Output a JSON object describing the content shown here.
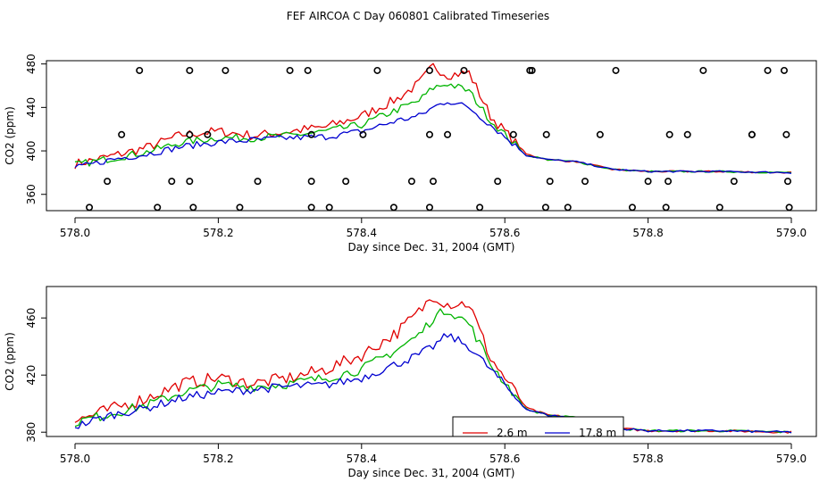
{
  "figure_title": "FEF AIRCOA C  Day 060801  Calibrated Timeseries",
  "colors": {
    "red": "#e00000",
    "green": "#00b400",
    "blue": "#0000d0",
    "ref": "#000000"
  },
  "chart_data": [
    {
      "type": "line",
      "title": "FEF AIRCOA C  Day 060801  Calibrated Timeseries",
      "xlabel": "Day since Dec. 31, 2004 (GMT)",
      "ylabel": "CO2 (ppm)",
      "xlim": [
        578.0,
        579.0
      ],
      "ylim": [
        345,
        483
      ],
      "xticks": [
        578.0,
        578.2,
        578.4,
        578.6,
        578.8,
        579.0
      ],
      "xtick_labels": [
        "578.0",
        "578.2",
        "578.4",
        "578.6",
        "578.8",
        "579.0"
      ],
      "yticks": [
        360,
        400,
        440,
        480
      ],
      "ytick_labels": [
        "360",
        "400",
        "440",
        "480"
      ],
      "series": [
        {
          "name": "red",
          "color_key": "red",
          "x": [
            578.0,
            578.05,
            578.1,
            578.15,
            578.2,
            578.25,
            578.3,
            578.35,
            578.4,
            578.45,
            578.48,
            578.5,
            578.52,
            578.55,
            578.58,
            578.6,
            578.63,
            578.66,
            578.7,
            578.75,
            578.8,
            578.9,
            579.0
          ],
          "y": [
            388,
            395,
            403,
            415,
            418,
            414,
            418,
            422,
            432,
            448,
            462,
            478,
            470,
            472,
            432,
            418,
            397,
            392,
            390,
            383,
            381,
            381,
            380
          ]
        },
        {
          "name": "green",
          "color_key": "green",
          "x": [
            578.0,
            578.05,
            578.1,
            578.15,
            578.2,
            578.25,
            578.3,
            578.35,
            578.4,
            578.45,
            578.48,
            578.5,
            578.52,
            578.55,
            578.58,
            578.6,
            578.63,
            578.66,
            578.7,
            578.75,
            578.8,
            578.9,
            579.0
          ],
          "y": [
            387,
            393,
            399,
            408,
            412,
            412,
            414,
            418,
            424,
            438,
            446,
            458,
            462,
            455,
            428,
            415,
            396,
            392,
            390,
            383,
            381,
            381,
            380
          ]
        },
        {
          "name": "blue",
          "color_key": "blue",
          "x": [
            578.0,
            578.05,
            578.1,
            578.15,
            578.2,
            578.25,
            578.3,
            578.35,
            578.4,
            578.45,
            578.48,
            578.5,
            578.52,
            578.55,
            578.58,
            578.6,
            578.63,
            578.66,
            578.7,
            578.75,
            578.8,
            578.9,
            579.0
          ],
          "y": [
            384,
            392,
            397,
            404,
            408,
            410,
            412,
            413,
            418,
            428,
            432,
            440,
            446,
            440,
            424,
            413,
            396,
            392,
            390,
            383,
            381,
            381,
            380
          ]
        }
      ],
      "reference_points": {
        "color_key": "ref",
        "x": [
          578.02,
          578.045,
          578.065,
          578.09,
          578.115,
          578.135,
          578.16,
          578.16,
          578.165,
          578.16,
          578.185,
          578.21,
          578.23,
          578.255,
          578.3,
          578.325,
          578.33,
          578.33,
          578.33,
          578.355,
          578.378,
          578.402,
          578.422,
          578.445,
          578.47,
          578.495,
          578.495,
          578.495,
          578.5,
          578.52,
          578.543,
          578.565,
          578.59,
          578.612,
          578.635,
          578.638,
          578.657,
          578.658,
          578.663,
          578.688,
          578.712,
          578.733,
          578.755,
          578.778,
          578.8,
          578.825,
          578.828,
          578.83,
          578.855,
          578.877,
          578.9,
          578.92,
          578.945,
          578.945,
          578.967,
          578.99,
          578.993,
          578.995,
          578.997
        ],
        "y": [
          348,
          372,
          415,
          474,
          348,
          372,
          474,
          372,
          348,
          415,
          415,
          474,
          348,
          372,
          474,
          474,
          348,
          372,
          415,
          348,
          372,
          415,
          474,
          348,
          372,
          474,
          415,
          348,
          372,
          415,
          474,
          348,
          372,
          415,
          474,
          474,
          348,
          415,
          372,
          348,
          372,
          415,
          474,
          348,
          372,
          348,
          372,
          415,
          415,
          474,
          348,
          372,
          415,
          415,
          474,
          474,
          415,
          372,
          348
        ]
      }
    },
    {
      "type": "line",
      "title": "",
      "xlabel": "Day since Dec. 31, 2004 (GMT)",
      "ylabel": "CO2 (ppm)",
      "xlim": [
        578.0,
        579.0
      ],
      "ylim": [
        377,
        482
      ],
      "xticks": [
        578.0,
        578.2,
        578.4,
        578.6,
        578.8,
        579.0
      ],
      "xtick_labels": [
        "578.0",
        "578.2",
        "578.4",
        "578.6",
        "578.8",
        "579.0"
      ],
      "yticks": [
        380,
        420,
        460
      ],
      "ytick_labels": [
        "380",
        "420",
        "460"
      ],
      "legend": {
        "position": "bottom-center",
        "entries": [
          {
            "label": "2.6 m",
            "color_key": "red"
          },
          {
            "label": "17.8 m",
            "color_key": "blue"
          }
        ]
      },
      "series": [
        {
          "name": "2.6 m",
          "color_key": "red",
          "x": [
            578.0,
            578.05,
            578.1,
            578.15,
            578.2,
            578.25,
            578.3,
            578.35,
            578.4,
            578.45,
            578.48,
            578.5,
            578.52,
            578.55,
            578.58,
            578.6,
            578.63,
            578.66,
            578.7,
            578.75,
            578.8,
            578.9,
            579.0
          ],
          "y": [
            388,
            396,
            404,
            414,
            418,
            414,
            418,
            424,
            434,
            450,
            464,
            476,
            470,
            470,
            432,
            418,
            397,
            392,
            390,
            383,
            381,
            381,
            380
          ]
        },
        {
          "name": "green",
          "color_key": "green",
          "x": [
            578.0,
            578.05,
            578.1,
            578.15,
            578.2,
            578.25,
            578.3,
            578.35,
            578.4,
            578.45,
            578.48,
            578.5,
            578.52,
            578.55,
            578.58,
            578.6,
            578.63,
            578.66,
            578.7,
            578.75,
            578.8,
            578.9,
            579.0
          ],
          "y": [
            387,
            393,
            399,
            408,
            413,
            412,
            414,
            418,
            424,
            438,
            448,
            460,
            466,
            456,
            428,
            415,
            396,
            392,
            390,
            383,
            381,
            381,
            380
          ]
        },
        {
          "name": "17.8 m",
          "color_key": "blue",
          "x": [
            578.0,
            578.05,
            578.1,
            578.15,
            578.2,
            578.25,
            578.3,
            578.35,
            578.4,
            578.45,
            578.48,
            578.5,
            578.52,
            578.55,
            578.58,
            578.6,
            578.63,
            578.66,
            578.7,
            578.75,
            578.8,
            578.9,
            579.0
          ],
          "y": [
            384,
            392,
            397,
            404,
            408,
            410,
            412,
            413,
            418,
            428,
            434,
            440,
            448,
            440,
            424,
            413,
            396,
            392,
            390,
            383,
            381,
            381,
            380
          ]
        }
      ]
    }
  ]
}
